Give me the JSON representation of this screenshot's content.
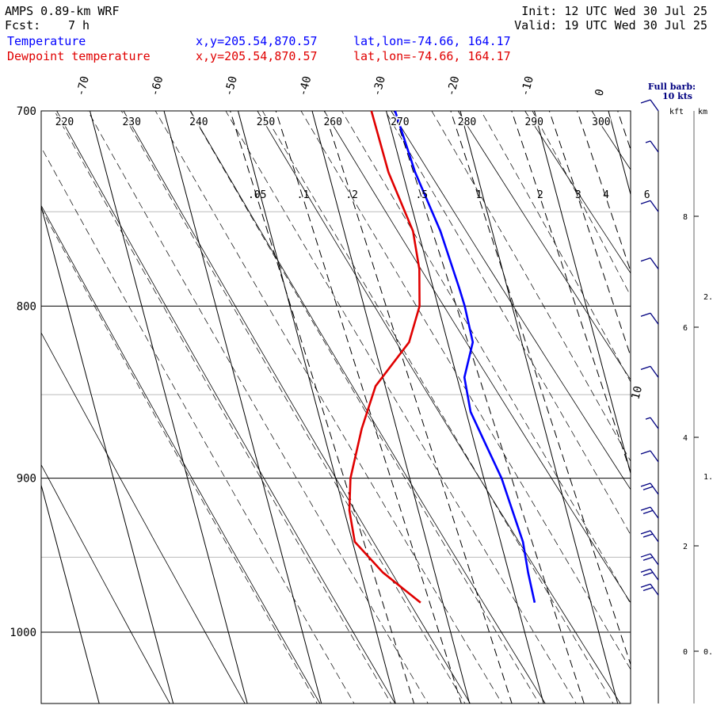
{
  "header": {
    "model": "AMPS 0.89-km WRF",
    "fcst_label": "Fcst:",
    "fcst_value": "7 h",
    "init": "Init: 12 UTC Wed 30 Jul 25",
    "valid": "Valid: 19 UTC Wed 30 Jul 25",
    "point_xy": "x,y=205.54,870.57",
    "point_latlon": "lat,lon=-74.66, 164.17"
  },
  "colors": {
    "temperature": "#0000ff",
    "dewpoint": "#e00000",
    "barb": "#000080",
    "grid": "#000000"
  },
  "barb_legend": {
    "line1": "Full barb:",
    "line2": "10 kts"
  },
  "height_axis": {
    "units_kft": "kft",
    "units_km": "km",
    "kft_labels": [
      "8",
      "6",
      "4",
      "2",
      "0"
    ],
    "km_labels": [
      "2.",
      "1.",
      "0."
    ]
  },
  "chart_data": {
    "type": "line",
    "title": "",
    "isotherm_labels": [
      "-70",
      "-60",
      "-50",
      "-40",
      "-30",
      "-20",
      "-10",
      "0",
      "10"
    ],
    "theta_labels": [
      "220",
      "230",
      "240",
      "250",
      "260",
      "270",
      "280",
      "290",
      "300"
    ],
    "mixing_ratio_labels": [
      ".05",
      ".1",
      ".2",
      ".5",
      "1",
      "2",
      "3",
      "4",
      "6"
    ],
    "pressure_labels": [
      "700",
      "800",
      "900",
      "1000"
    ],
    "yscale": "log",
    "ylim": [
      1040,
      700
    ],
    "series": [
      {
        "name": "Temperature",
        "color": "#0000ff",
        "points": [
          {
            "p": 700,
            "t": -28.8
          },
          {
            "p": 730,
            "t": -28.3
          },
          {
            "p": 760,
            "t": -27.0
          },
          {
            "p": 790,
            "t": -26.5
          },
          {
            "p": 800,
            "t": -26.4
          },
          {
            "p": 820,
            "t": -26.6
          },
          {
            "p": 840,
            "t": -29.0
          },
          {
            "p": 860,
            "t": -29.4
          },
          {
            "p": 880,
            "t": -28.5
          },
          {
            "p": 900,
            "t": -27.6
          },
          {
            "p": 920,
            "t": -27.3
          },
          {
            "p": 940,
            "t": -27.0
          },
          {
            "p": 960,
            "t": -27.4
          },
          {
            "p": 980,
            "t": -27.6
          }
        ]
      },
      {
        "name": "Dewpoint temperature",
        "color": "#e00000",
        "points": [
          {
            "p": 700,
            "t": -32.0
          },
          {
            "p": 730,
            "t": -31.9
          },
          {
            "p": 760,
            "t": -30.7
          },
          {
            "p": 780,
            "t": -31.2
          },
          {
            "p": 800,
            "t": -32.5
          },
          {
            "p": 820,
            "t": -35.2
          },
          {
            "p": 845,
            "t": -41.3
          },
          {
            "p": 870,
            "t": -44.7
          },
          {
            "p": 900,
            "t": -48.0
          },
          {
            "p": 920,
            "t": -49.3
          },
          {
            "p": 940,
            "t": -49.7
          },
          {
            "p": 960,
            "t": -47.0
          },
          {
            "p": 980,
            "t": -43.0
          }
        ]
      }
    ],
    "wind_barbs": [
      {
        "p": 700,
        "kts": 10
      },
      {
        "p": 720,
        "kts": 5
      },
      {
        "p": 750,
        "kts": 10
      },
      {
        "p": 780,
        "kts": 10
      },
      {
        "p": 810,
        "kts": 10
      },
      {
        "p": 840,
        "kts": 10
      },
      {
        "p": 870,
        "kts": 5
      },
      {
        "p": 890,
        "kts": 10
      },
      {
        "p": 910,
        "kts": 20
      },
      {
        "p": 925,
        "kts": 20
      },
      {
        "p": 940,
        "kts": 20
      },
      {
        "p": 955,
        "kts": 20
      },
      {
        "p": 965,
        "kts": 20
      },
      {
        "p": 975,
        "kts": 20
      }
    ]
  }
}
